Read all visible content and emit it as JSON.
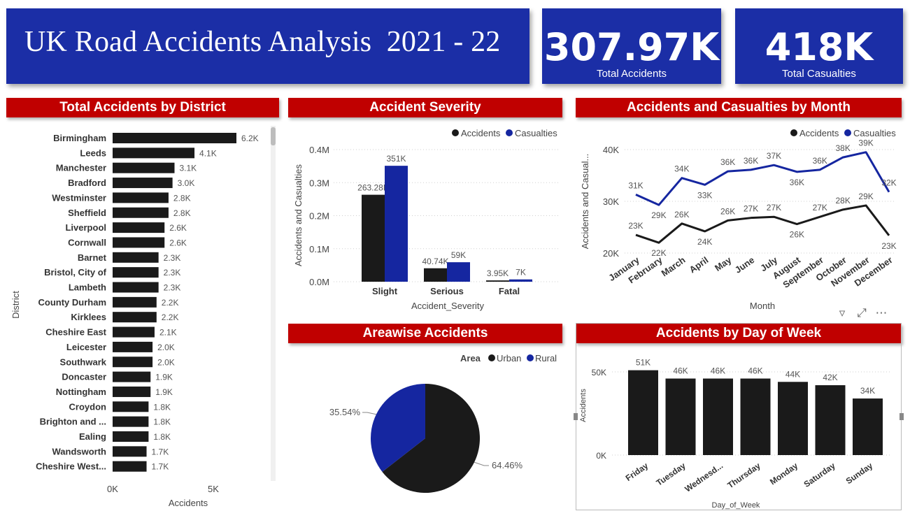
{
  "header": {
    "title": "UK Road Accidents Analysis  2021 - 22",
    "kpis": [
      {
        "value": "307.97K",
        "label": "Total Accidents"
      },
      {
        "value": "418K",
        "label": "Total Casualties"
      }
    ]
  },
  "colors": {
    "brand_blue": "#1b2ea6",
    "header_red": "#c00000",
    "bar_black": "#1a1a1a",
    "series_blue": "#1526a0"
  },
  "panels": {
    "district": "Total Accidents by District",
    "severity": "Accident Severity",
    "month": "Accidents and Casualties by Month",
    "area": "Areawise Accidents",
    "dow": "Accidents by Day of Week"
  },
  "visual_tools": [
    "filter-icon",
    "focus-mode-icon",
    "more-options-icon"
  ],
  "chart_data": [
    {
      "id": "district",
      "type": "bar",
      "orientation": "horizontal",
      "title": "Total Accidents by District",
      "xlabel": "Accidents",
      "ylabel": "District",
      "xlim": [
        0,
        6200
      ],
      "xticks": [
        "0K",
        "5K"
      ],
      "categories": [
        "Birmingham",
        "Leeds",
        "Manchester",
        "Bradford",
        "Westminster",
        "Sheffield",
        "Liverpool",
        "Cornwall",
        "Barnet",
        "Bristol, City of",
        "Lambeth",
        "County Durham",
        "Kirklees",
        "Cheshire East",
        "Leicester",
        "Southwark",
        "Doncaster",
        "Nottingham",
        "Croydon",
        "Brighton and ...",
        "Ealing",
        "Wandsworth",
        "Cheshire West..."
      ],
      "values": [
        6200,
        4100,
        3100,
        3000,
        2800,
        2800,
        2600,
        2600,
        2300,
        2300,
        2300,
        2200,
        2200,
        2100,
        2000,
        2000,
        1900,
        1900,
        1800,
        1800,
        1800,
        1700,
        1700
      ],
      "labels": [
        "6.2K",
        "4.1K",
        "3.1K",
        "3.0K",
        "2.8K",
        "2.8K",
        "2.6K",
        "2.6K",
        "2.3K",
        "2.3K",
        "2.3K",
        "2.2K",
        "2.2K",
        "2.1K",
        "2.0K",
        "2.0K",
        "1.9K",
        "1.9K",
        "1.8K",
        "1.8K",
        "1.8K",
        "1.7K",
        "1.7K"
      ]
    },
    {
      "id": "severity",
      "type": "bar",
      "title": "Accident Severity",
      "xlabel": "Accident_Severity",
      "ylabel": "Accidents and Casualties",
      "ylim": [
        0,
        400000
      ],
      "yticks": [
        {
          "v": 0,
          "t": "0.0M"
        },
        {
          "v": 100000,
          "t": "0.1M"
        },
        {
          "v": 200000,
          "t": "0.2M"
        },
        {
          "v": 300000,
          "t": "0.3M"
        },
        {
          "v": 400000,
          "t": "0.4M"
        }
      ],
      "categories": [
        "Slight",
        "Serious",
        "Fatal"
      ],
      "legend": [
        "Accidents",
        "Casualties"
      ],
      "series": [
        {
          "name": "Accidents",
          "values": [
            263280,
            40740,
            3950
          ],
          "labels": [
            "263.28K",
            "40.74K",
            "3.95K"
          ]
        },
        {
          "name": "Casualties",
          "values": [
            351000,
            59000,
            7000
          ],
          "labels": [
            "351K",
            "59K",
            "7K"
          ]
        }
      ]
    },
    {
      "id": "month",
      "type": "line",
      "title": "Accidents and Casualties by Month",
      "xlabel": "Month",
      "ylabel": "Accidents and Casual...",
      "ylim": [
        20000,
        40000
      ],
      "yticks": [
        {
          "v": 20000,
          "t": "20K"
        },
        {
          "v": 30000,
          "t": "30K"
        },
        {
          "v": 40000,
          "t": "40K"
        }
      ],
      "categories": [
        "January",
        "February",
        "March",
        "April",
        "May",
        "June",
        "July",
        "August",
        "September",
        "October",
        "November",
        "December"
      ],
      "legend": [
        "Accidents",
        "Casualties"
      ],
      "series": [
        {
          "name": "Accidents",
          "values": [
            23500,
            22000,
            25700,
            24200,
            26300,
            26800,
            27000,
            25600,
            27000,
            28400,
            29200,
            23400
          ],
          "labels": [
            "23K",
            "22K",
            "26K",
            "24K",
            "26K",
            "27K",
            "27K",
            "26K",
            "27K",
            "28K",
            "29K",
            "23K"
          ]
        },
        {
          "name": "Casualties",
          "values": [
            31300,
            29300,
            34500,
            33200,
            35800,
            36100,
            37000,
            35700,
            36100,
            38500,
            39500,
            31800
          ],
          "labels": [
            "31K",
            "29K",
            "34K",
            "33K",
            "36K",
            "36K",
            "37K",
            "36K",
            "36K",
            "38K",
            "39K",
            "32K"
          ]
        }
      ]
    },
    {
      "id": "area",
      "type": "pie",
      "title": "Areawise Accidents",
      "legend_title": "Area",
      "legend": [
        "Urban",
        "Rural"
      ],
      "values": [
        64.46,
        35.54
      ],
      "labels": [
        "64.46%",
        "35.54%"
      ]
    },
    {
      "id": "dow",
      "type": "bar",
      "title": "Accidents by Day of Week",
      "xlabel": "Day_of_Week",
      "ylabel": "Accidents",
      "ylim": [
        0,
        50000
      ],
      "yticks": [
        {
          "v": 0,
          "t": "0K"
        },
        {
          "v": 50000,
          "t": "50K"
        }
      ],
      "categories": [
        "Friday",
        "Tuesday",
        "Wednesd...",
        "Thursday",
        "Monday",
        "Saturday",
        "Sunday"
      ],
      "values": [
        51000,
        46000,
        46000,
        46000,
        44000,
        42000,
        34000
      ],
      "labels": [
        "51K",
        "46K",
        "46K",
        "46K",
        "44K",
        "42K",
        "34K"
      ]
    }
  ]
}
